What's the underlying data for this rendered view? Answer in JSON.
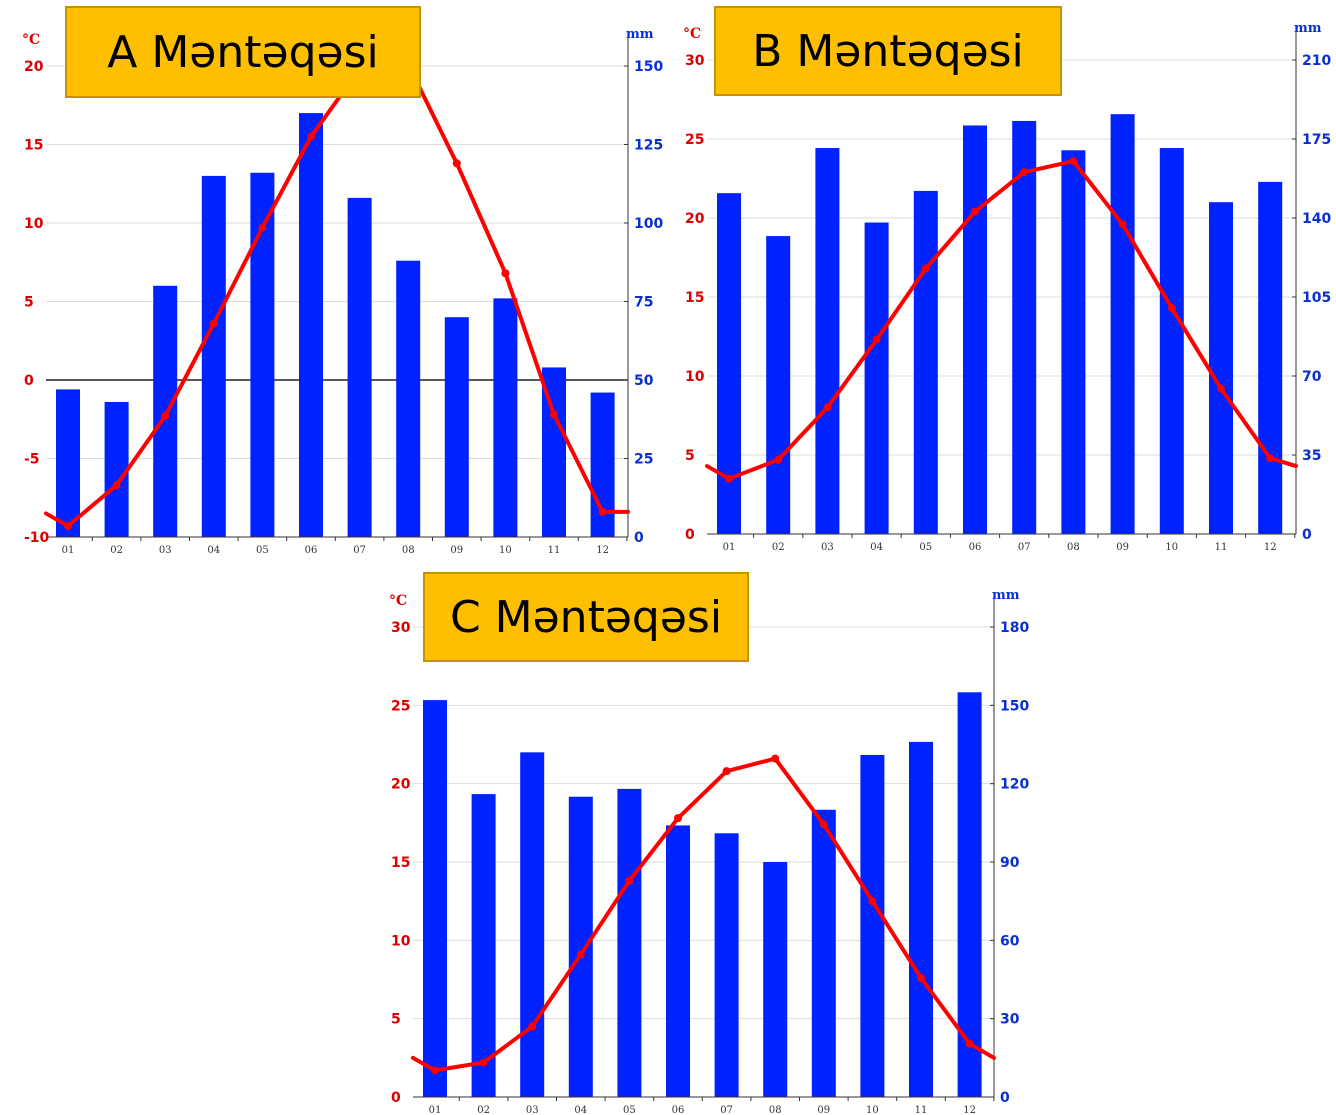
{
  "chart_data": [
    {
      "type": "bar+line",
      "title": "A Məntəqəsi",
      "temp_unit": "°C",
      "precip_unit": "mm",
      "categories": [
        "01",
        "02",
        "03",
        "04",
        "05",
        "06",
        "07",
        "08",
        "09",
        "10",
        "11",
        "12"
      ],
      "temp_ylim": [
        -10,
        20
      ],
      "temp_ticks": [
        -10,
        -5,
        0,
        5,
        10,
        15,
        20
      ],
      "precip_ylim": [
        0,
        150
      ],
      "precip_ticks": [
        0,
        25,
        50,
        75,
        100,
        125,
        150
      ],
      "precipitation": [
        47,
        43,
        80,
        115,
        116,
        135,
        108,
        88,
        70,
        76,
        54,
        46
      ],
      "temperature": [
        -9.3,
        -6.7,
        -2.3,
        3.6,
        9.7,
        15.5,
        19.8,
        20.1,
        13.8,
        6.8,
        -2.2,
        -8.4
      ],
      "temp_edge": [
        -8.5,
        -8.4
      ],
      "zero_line": true
    },
    {
      "type": "bar+line",
      "title": "B Məntəqəsi",
      "temp_unit": "°C",
      "precip_unit": "mm",
      "categories": [
        "01",
        "02",
        "03",
        "04",
        "05",
        "06",
        "07",
        "08",
        "09",
        "10",
        "11",
        "12"
      ],
      "temp_ylim": [
        0,
        30
      ],
      "temp_ticks": [
        0,
        5,
        10,
        15,
        20,
        25,
        30
      ],
      "precip_ylim": [
        0,
        210
      ],
      "precip_ticks": [
        0,
        35,
        70,
        105,
        140,
        175,
        210
      ],
      "precipitation": [
        151,
        132,
        171,
        138,
        152,
        181,
        183,
        170,
        186,
        171,
        147,
        156
      ],
      "temperature": [
        3.5,
        4.7,
        8.0,
        12.3,
        16.8,
        20.4,
        22.9,
        23.6,
        19.6,
        14.3,
        9.2,
        4.8
      ],
      "temp_edge": [
        4.3,
        4.3
      ]
    },
    {
      "type": "bar+line",
      "title": "C Məntəqəsi",
      "temp_unit": "°C",
      "precip_unit": "mm",
      "categories": [
        "01",
        "02",
        "03",
        "04",
        "05",
        "06",
        "07",
        "08",
        "09",
        "10",
        "11",
        "12"
      ],
      "temp_ylim": [
        0,
        30
      ],
      "temp_ticks": [
        0,
        5,
        10,
        15,
        20,
        25,
        30
      ],
      "precip_ylim": [
        0,
        180
      ],
      "precip_ticks": [
        0,
        30,
        60,
        90,
        120,
        150,
        180
      ],
      "precipitation": [
        152,
        116,
        132,
        115,
        118,
        104,
        101,
        90,
        110,
        131,
        136,
        155
      ],
      "temperature": [
        1.7,
        2.2,
        4.5,
        9.1,
        13.8,
        17.8,
        20.8,
        21.6,
        17.4,
        12.5,
        7.6,
        3.4
      ],
      "temp_edge": [
        2.5,
        2.5
      ]
    }
  ],
  "colors": {
    "temperature": "#ff0000",
    "precipitation": "#0022ff",
    "temp_axis_text": "#dd0000",
    "precip_axis_text": "#0a2fd0",
    "grid": "#dddddd",
    "title_box": "#fdbf00"
  }
}
